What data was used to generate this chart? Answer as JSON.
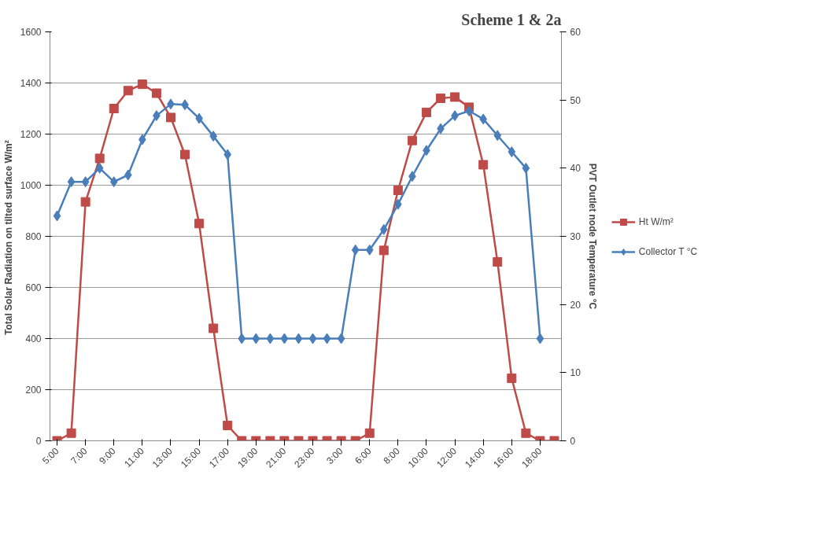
{
  "chart_data": {
    "type": "line",
    "title": "Scheme 1 & 2a",
    "ylabel": "Total Solar Radiation  on tilted surface W/m²",
    "y2label": "PVT Outlet node Temperature °C",
    "categories": [
      "5:00",
      null,
      "7:00",
      null,
      "9:00",
      null,
      "11:00",
      null,
      "13:00",
      null,
      "15:00",
      null,
      "17:00",
      null,
      "19:00",
      null,
      "21:00",
      null,
      "23:00",
      null,
      "3:00",
      null,
      "6:00",
      null,
      "8:00",
      null,
      "10:00",
      null,
      "12:00",
      null,
      "14:00",
      null,
      "16:00",
      null,
      "18:00",
      null
    ],
    "series": [
      {
        "name": "Ht W/m²",
        "color": "#be4b48",
        "marker": "square",
        "values": [
          0,
          30,
          935,
          1105,
          1300,
          1370,
          1395,
          1360,
          1265,
          1120,
          850,
          440,
          60,
          0,
          0,
          0,
          0,
          0,
          0,
          0,
          0,
          0,
          30,
          745,
          980,
          1175,
          1285,
          1340,
          1345,
          1305,
          1080,
          700,
          245,
          30,
          0,
          0
        ]
      },
      {
        "name": "Collector T °C",
        "color": "#4a7ebb",
        "marker": "diamond",
        "axis": "y2",
        "values": [
          33,
          38,
          38,
          40,
          38,
          39,
          44.2,
          47.7,
          49.4,
          49.3,
          47.3,
          44.7,
          42,
          15,
          15,
          15,
          15,
          15,
          15,
          15,
          15,
          28,
          28,
          31,
          34.7,
          38.8,
          42.6,
          45.8,
          47.7,
          48.4,
          47.2,
          44.8,
          42.4,
          40,
          15,
          null
        ]
      }
    ],
    "ylim": [
      0,
      1600
    ],
    "yticks": [
      0,
      200,
      400,
      600,
      800,
      1000,
      1200,
      1400,
      1600
    ],
    "y2lim": [
      0,
      60
    ],
    "y2ticks": [
      0,
      10,
      20,
      30,
      40,
      50,
      60
    ],
    "grid": "y",
    "legend": "right",
    "line_style": "solid"
  }
}
